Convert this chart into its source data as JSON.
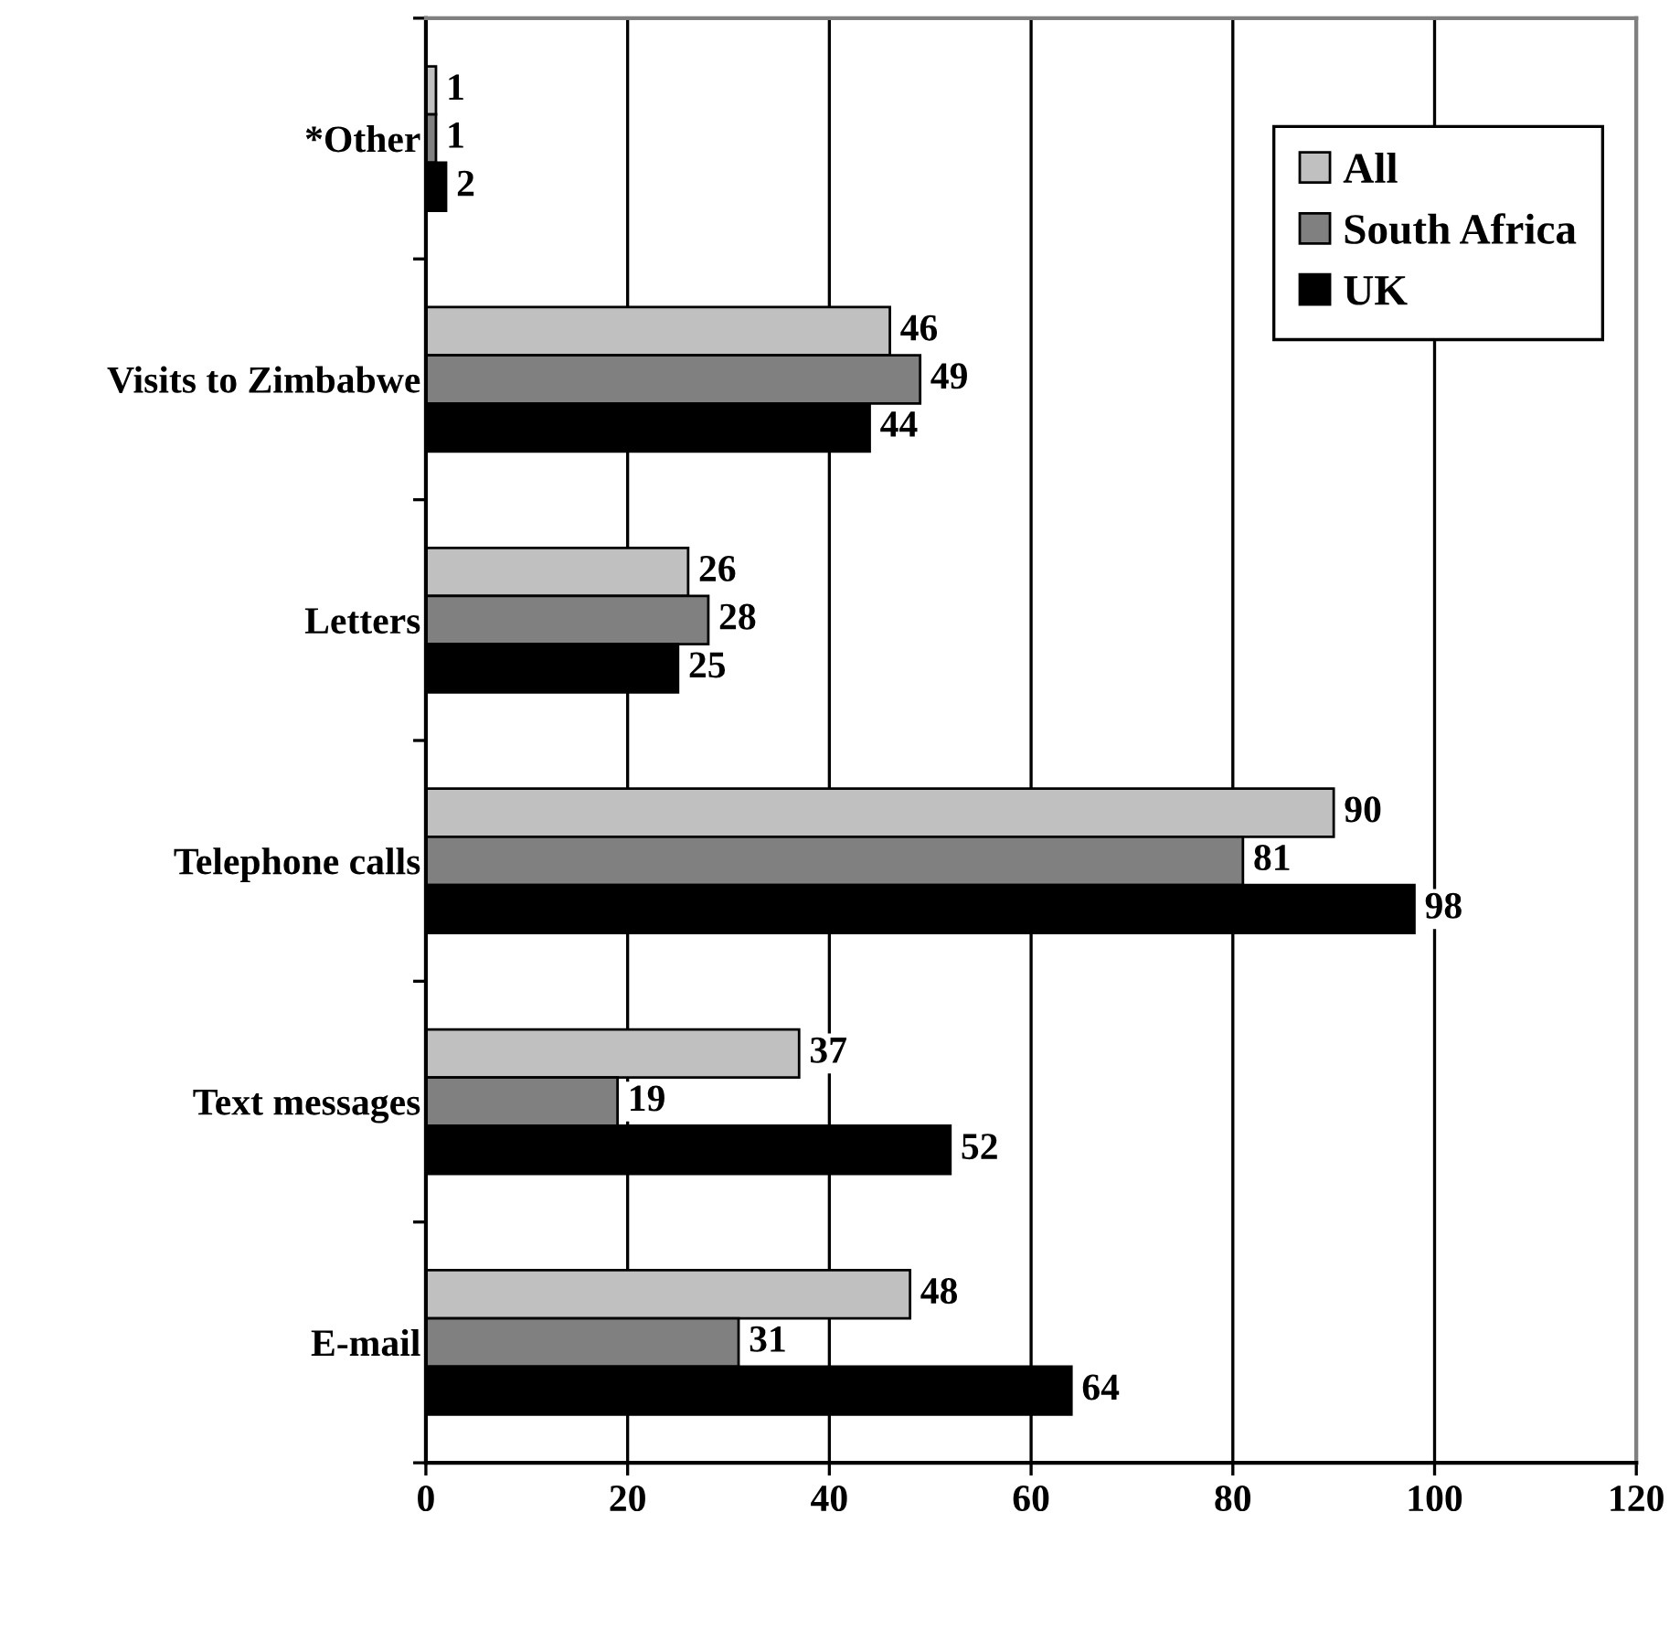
{
  "chart_data": {
    "type": "bar",
    "orientation": "horizontal",
    "categories": [
      "*Other",
      "Visits to Zimbabwe",
      "Letters",
      "Telephone calls",
      "Text messages",
      "E-mail"
    ],
    "series": [
      {
        "name": "All",
        "color": "#c0c0c0",
        "values": [
          1,
          46,
          26,
          90,
          37,
          48
        ]
      },
      {
        "name": "South Africa",
        "color": "#808080",
        "values": [
          1,
          49,
          28,
          81,
          19,
          31
        ]
      },
      {
        "name": "UK",
        "color": "#000000",
        "values": [
          2,
          44,
          25,
          98,
          52,
          64
        ]
      }
    ],
    "xlim": [
      0,
      120
    ],
    "xticks": [
      0,
      20,
      40,
      60,
      80,
      100,
      120
    ],
    "grid": "x",
    "legend": "top right",
    "data_labels": true
  }
}
